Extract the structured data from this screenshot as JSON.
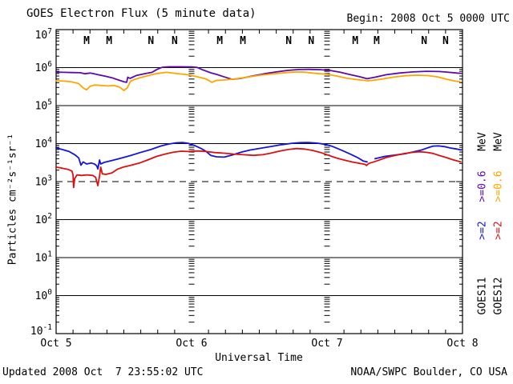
{
  "header": {
    "begin": "Begin: 2008 Oct 5 0000 UTC"
  },
  "footer": {
    "updated": "Updated 2008 Oct  7 23:55:02 UTC",
    "attribution": "NOAA/SWPC Boulder, CO USA"
  },
  "right_legend": {
    "col1": {
      "mev": {
        "label": "MeV",
        "color": "#000000"
      },
      "e06": {
        "label": ">=0.6",
        "color": "#5C0AAE"
      },
      "e2": {
        "label": ">=2",
        "color": "#1515D6"
      },
      "sat": {
        "label": "GOES11",
        "color": "#000000"
      }
    },
    "col2": {
      "mev": {
        "label": "MeV",
        "color": "#000000"
      },
      "e06": {
        "label": ">=0.6",
        "color": "#FFA500"
      },
      "e2": {
        "label": ">=2",
        "color": "#DC1010"
      },
      "sat": {
        "label": "GOES12",
        "color": "#000000"
      }
    }
  },
  "chart_data": {
    "type": "line",
    "title": "GOES Electron Flux (5 minute data)",
    "xlabel": "Universal Time",
    "ylabel": "Particles cm⁻²s⁻¹sr⁻¹",
    "y_axis": {
      "scale": "log10",
      "log10_range": [
        -1,
        7
      ],
      "tick_exponents": [
        7,
        6,
        5,
        4,
        3,
        2,
        1,
        0,
        -1
      ]
    },
    "x_axis": {
      "hours_range": [
        0,
        72
      ],
      "minor_tick_hours": 3,
      "day_divider_hours": [
        24,
        48
      ],
      "ticks": [
        {
          "hour": 0,
          "label": "Oct 5"
        },
        {
          "hour": 24,
          "label": "Oct 6"
        },
        {
          "hour": 48,
          "label": "Oct 7"
        },
        {
          "hour": 72,
          "label": "Oct 8"
        }
      ]
    },
    "threshold_dashed_line_flux": 1000,
    "noon_midnight_markers": [
      {
        "hour": 5.4,
        "label": "M",
        "color": "#DC1010"
      },
      {
        "hour": 9.4,
        "label": "M",
        "color": "#1515D6"
      },
      {
        "hour": 16.8,
        "label": "N",
        "color": "#DC1010"
      },
      {
        "hour": 21.0,
        "label": "N",
        "color": "#1515D6"
      },
      {
        "hour": 29.0,
        "label": "M",
        "color": "#DC1010"
      },
      {
        "hour": 33.1,
        "label": "M",
        "color": "#1515D6"
      },
      {
        "hour": 41.2,
        "label": "N",
        "color": "#DC1010"
      },
      {
        "hour": 45.2,
        "label": "N",
        "color": "#1515D6"
      },
      {
        "hour": 53.0,
        "label": "M",
        "color": "#DC1010"
      },
      {
        "hour": 56.8,
        "label": "M",
        "color": "#1515D6"
      },
      {
        "hour": 65.2,
        "label": "N",
        "color": "#DC1010"
      },
      {
        "hour": 69.0,
        "label": "N",
        "color": "#1515D6"
      }
    ],
    "series": [
      {
        "id": "goes11-e06",
        "name": "GOES11 >=0.6 MeV",
        "color": "#5C0AAE",
        "segments": [
          [
            [
              0,
              760000.0
            ],
            [
              1.4,
              750000.0
            ],
            [
              2.8,
              740000.0
            ],
            [
              4.3,
              735000.0
            ],
            [
              5.1,
              690000.0
            ],
            [
              6.0,
              720000.0
            ],
            [
              6.5,
              700000.0
            ],
            [
              7.7,
              640000.0
            ],
            [
              8.8,
              590000.0
            ],
            [
              9.9,
              540000.0
            ],
            [
              11.1,
              470000.0
            ],
            [
              12.1,
              420000.0
            ],
            [
              12.5,
              410000.0
            ],
            [
              12.7,
              560000.0
            ],
            [
              13.1,
              520000.0
            ],
            [
              14.2,
              620000.0
            ],
            [
              15.6,
              690000.0
            ],
            [
              17.0,
              750000.0
            ],
            [
              17.9,
              900000.0
            ],
            [
              18.8,
              1020000.0
            ],
            [
              20.0,
              1050000.0
            ],
            [
              22.0,
              1050000.0
            ],
            [
              24.0,
              1040000.0
            ],
            [
              25.0,
              1010000.0
            ],
            [
              25.9,
              880000.0
            ],
            [
              27.4,
              730000.0
            ],
            [
              28.5,
              660000.0
            ],
            [
              29.6,
              580000.0
            ],
            [
              31.2,
              490000.0
            ],
            [
              32.7,
              520000.0
            ],
            [
              34.8,
              600000.0
            ],
            [
              36.9,
              690000.0
            ],
            [
              39.0,
              770000.0
            ],
            [
              40.9,
              840000.0
            ],
            [
              42.9,
              890000.0
            ],
            [
              44.7,
              900000.0
            ],
            [
              46.9,
              880000.0
            ],
            [
              48.6,
              840000.0
            ],
            [
              50.3,
              760000.0
            ],
            [
              52.0,
              660000.0
            ],
            [
              53.7,
              580000.0
            ],
            [
              55.1,
              510000.0
            ],
            [
              56.5,
              560000.0
            ],
            [
              58.5,
              650000.0
            ],
            [
              60.8,
              720000.0
            ],
            [
              63.2,
              770000.0
            ],
            [
              65.6,
              800000.0
            ],
            [
              67.9,
              790000.0
            ],
            [
              69.6,
              750000.0
            ],
            [
              71.0,
              720000.0
            ],
            [
              71.7,
              710000.0
            ]
          ]
        ]
      },
      {
        "id": "goes12-e06",
        "name": "GOES12 >=0.6 MeV",
        "color": "#FFA500",
        "segments": [
          [
            [
              0,
              450000.0
            ],
            [
              1.4,
              440000.0
            ],
            [
              2.8,
              420000.0
            ],
            [
              4.0,
              380000.0
            ],
            [
              4.8,
              290000.0
            ],
            [
              5.4,
              260000.0
            ],
            [
              6.0,
              320000.0
            ],
            [
              6.8,
              350000.0
            ],
            [
              8.0,
              340000.0
            ],
            [
              9.2,
              330000.0
            ],
            [
              10.2,
              340000.0
            ],
            [
              11.2,
              310000.0
            ],
            [
              12.0,
              250000.0
            ],
            [
              12.6,
              290000.0
            ],
            [
              13.2,
              440000.0
            ],
            [
              13.9,
              490000.0
            ],
            [
              15.6,
              580000.0
            ],
            [
              17.6,
              690000.0
            ],
            [
              19.6,
              750000.0
            ],
            [
              21.3,
              700000.0
            ],
            [
              23.0,
              660000.0
            ],
            [
              24.0,
              620000.0
            ],
            [
              25.5,
              550000.0
            ],
            [
              26.6,
              500000.0
            ],
            [
              27.6,
              410000.0
            ],
            [
              28.4,
              460000.0
            ],
            [
              29.5,
              470000.0
            ],
            [
              31.5,
              500000.0
            ],
            [
              33.8,
              560000.0
            ],
            [
              36.2,
              630000.0
            ],
            [
              38.6,
              690000.0
            ],
            [
              40.9,
              740000.0
            ],
            [
              42.6,
              770000.0
            ],
            [
              44.0,
              760000.0
            ],
            [
              45.8,
              710000.0
            ],
            [
              48.0,
              670000.0
            ],
            [
              49.7,
              600000.0
            ],
            [
              51.4,
              530000.0
            ],
            [
              53.4,
              480000.0
            ],
            [
              55.4,
              450000.0
            ],
            [
              57.4,
              490000.0
            ],
            [
              59.7,
              560000.0
            ],
            [
              61.8,
              610000.0
            ],
            [
              63.9,
              630000.0
            ],
            [
              65.8,
              620000.0
            ],
            [
              67.6,
              570000.0
            ],
            [
              69.3,
              490000.0
            ],
            [
              70.7,
              440000.0
            ],
            [
              71.7,
              420000.0
            ]
          ]
        ]
      },
      {
        "id": "goes11-e2",
        "name": "GOES11 >=2 MeV",
        "color": "#1515D6",
        "segments": [
          [
            [
              0,
              7700.0
            ],
            [
              1.1,
              7000.0
            ],
            [
              2.3,
              6200.0
            ],
            [
              3.4,
              5000.0
            ],
            [
              4.0,
              4200.0
            ],
            [
              4.4,
              2700.0
            ],
            [
              4.8,
              3300.0
            ],
            [
              5.4,
              2900.0
            ],
            [
              6.2,
              3100.0
            ],
            [
              6.8,
              2900.0
            ],
            [
              7.2,
              2600.0
            ],
            [
              7.4,
              2150.0
            ],
            [
              7.7,
              3700.0
            ],
            [
              7.9,
              2900.0
            ],
            [
              8.5,
              3200.0
            ],
            [
              9.9,
              3600.0
            ],
            [
              11.4,
              4100.0
            ],
            [
              13.1,
              4800.0
            ],
            [
              14.9,
              5800.0
            ],
            [
              16.8,
              7000.0
            ],
            [
              18.5,
              8600.0
            ],
            [
              19.9,
              9700.0
            ],
            [
              21.3,
              10500.0
            ],
            [
              22.4,
              10700.0
            ],
            [
              23.4,
              10200.0
            ],
            [
              24.6,
              8800.0
            ],
            [
              25.7,
              7400.0
            ],
            [
              26.6,
              6200.0
            ],
            [
              27.4,
              4900.0
            ],
            [
              28.4,
              4500.0
            ],
            [
              29.8,
              4400.0
            ],
            [
              31.2,
              5000.0
            ],
            [
              32.7,
              5900.0
            ],
            [
              34.4,
              6800.0
            ],
            [
              36.6,
              7700.0
            ],
            [
              38.3,
              8500.0
            ],
            [
              40.0,
              9400.0
            ],
            [
              41.8,
              10200.0
            ],
            [
              43.3,
              10600.0
            ],
            [
              44.7,
              10700.0
            ],
            [
              46.2,
              10300.0
            ],
            [
              47.6,
              9600.0
            ],
            [
              48.8,
              8600.0
            ],
            [
              49.7,
              7600.0
            ],
            [
              50.8,
              6500.0
            ],
            [
              52.1,
              5300.0
            ],
            [
              53.4,
              4300.0
            ],
            [
              54.4,
              3500.0
            ],
            [
              55.1,
              3300.0
            ]
          ],
          [
            [
              56.5,
              4000.0
            ],
            [
              58.2,
              4600.0
            ],
            [
              60.1,
              5000.0
            ],
            [
              61.8,
              5400.0
            ],
            [
              63.2,
              6000.0
            ],
            [
              64.6,
              6700.0
            ],
            [
              66.1,
              8000.0
            ],
            [
              66.8,
              8600.0
            ],
            [
              67.8,
              8700.0
            ],
            [
              68.8,
              8300.0
            ],
            [
              70.0,
              7600.0
            ],
            [
              71.0,
              7200.0
            ],
            [
              71.7,
              6800.0
            ]
          ]
        ]
      },
      {
        "id": "goes12-e2",
        "name": "GOES12 >=2 MeV",
        "color": "#DC1010",
        "segments": [
          [
            [
              0,
              2400.0
            ],
            [
              1.1,
              2250.0
            ],
            [
              2.1,
              2100.0
            ],
            [
              2.8,
              1900.0
            ],
            [
              3.0,
              1500.0
            ],
            [
              3.1,
              700.0
            ],
            [
              3.3,
              1200.0
            ],
            [
              3.7,
              1500.0
            ],
            [
              4.5,
              1450.0
            ],
            [
              5.5,
              1500.0
            ],
            [
              6.5,
              1450.0
            ],
            [
              7.0,
              1300.0
            ],
            [
              7.4,
              780.0
            ],
            [
              7.7,
              1400.0
            ],
            [
              7.9,
              2400.0
            ],
            [
              8.2,
              1600.0
            ],
            [
              8.8,
              1550.0
            ],
            [
              9.9,
              1700.0
            ],
            [
              10.8,
              2100.0
            ],
            [
              11.9,
              2400.0
            ],
            [
              13.3,
              2700.0
            ],
            [
              14.8,
              3100.0
            ],
            [
              16.2,
              3700.0
            ],
            [
              17.8,
              4600.0
            ],
            [
              19.3,
              5300.0
            ],
            [
              20.7,
              5900.0
            ],
            [
              22.1,
              6300.0
            ],
            [
              23.5,
              6200.0
            ],
            [
              25.1,
              6400.0
            ],
            [
              26.6,
              6200.0
            ],
            [
              28.1,
              5800.0
            ],
            [
              29.8,
              5600.0
            ],
            [
              31.5,
              5300.0
            ],
            [
              33.2,
              5100.0
            ],
            [
              34.9,
              4900.0
            ],
            [
              36.6,
              5100.0
            ],
            [
              38.0,
              5600.0
            ],
            [
              39.5,
              6300.0
            ],
            [
              41.1,
              7000.0
            ],
            [
              42.6,
              7400.0
            ],
            [
              44.0,
              7200.0
            ],
            [
              45.5,
              6600.0
            ],
            [
              46.9,
              5800.0
            ],
            [
              48.3,
              4900.0
            ],
            [
              49.6,
              4200.0
            ],
            [
              51.0,
              3700.0
            ],
            [
              52.4,
              3300.0
            ],
            [
              53.8,
              3000.0
            ],
            [
              54.7,
              2850.0
            ],
            [
              55.0,
              2650.0
            ],
            [
              55.4,
              3000.0
            ],
            [
              56.8,
              3500.0
            ],
            [
              58.5,
              4300.0
            ],
            [
              60.1,
              4900.0
            ],
            [
              61.8,
              5500.0
            ],
            [
              63.2,
              5900.0
            ],
            [
              64.3,
              6100.0
            ],
            [
              65.6,
              5900.0
            ],
            [
              66.8,
              5500.0
            ],
            [
              68.0,
              4800.0
            ],
            [
              69.1,
              4300.0
            ],
            [
              70.2,
              3800.0
            ],
            [
              71.1,
              3500.0
            ],
            [
              71.7,
              3300.0
            ]
          ]
        ]
      }
    ]
  }
}
